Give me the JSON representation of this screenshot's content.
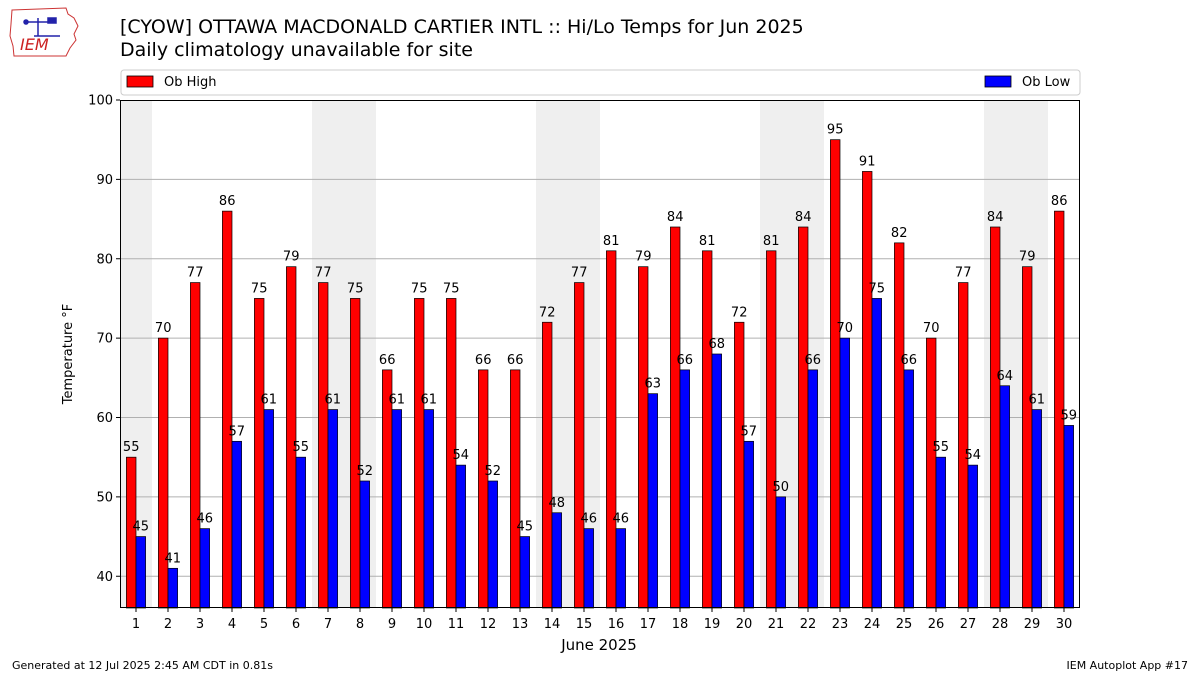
{
  "logo_text": "IEM",
  "header": {
    "title": "[CYOW] OTTAWA MACDONALD CARTIER INTL :: Hi/Lo Temps for Jun 2025",
    "subtitle": "Daily climatology unavailable for site"
  },
  "footer": {
    "left": "Generated at 12 Jul 2025 2:45 AM CDT in 0.81s",
    "right": "IEM Autoplot App #17"
  },
  "colors": {
    "high": "#ff0000",
    "low": "#0000ff",
    "weekend": "#efefef"
  },
  "chart_data": {
    "type": "bar",
    "xlabel": "June 2025",
    "ylabel": "Temperature °F",
    "ylim": [
      36,
      100
    ],
    "yticks": [
      40,
      50,
      60,
      70,
      80,
      90,
      100
    ],
    "grid": true,
    "legend_placement": "top",
    "categories": [
      "1",
      "2",
      "3",
      "4",
      "5",
      "6",
      "7",
      "8",
      "9",
      "10",
      "11",
      "12",
      "13",
      "14",
      "15",
      "16",
      "17",
      "18",
      "19",
      "20",
      "21",
      "22",
      "23",
      "24",
      "25",
      "26",
      "27",
      "28",
      "29",
      "30"
    ],
    "shaded_days": [
      1,
      7,
      8,
      14,
      15,
      21,
      22,
      28,
      29
    ],
    "series": [
      {
        "name": "Ob High",
        "color": "#ff0000",
        "values": [
          55,
          70,
          77,
          86,
          75,
          79,
          77,
          75,
          66,
          75,
          75,
          66,
          66,
          72,
          77,
          81,
          79,
          84,
          81,
          72,
          81,
          84,
          95,
          91,
          82,
          70,
          77,
          84,
          79,
          86
        ]
      },
      {
        "name": "Ob Low",
        "color": "#0000ff",
        "values": [
          45,
          41,
          46,
          57,
          61,
          55,
          61,
          52,
          61,
          61,
          54,
          52,
          45,
          48,
          46,
          46,
          63,
          66,
          68,
          57,
          50,
          66,
          70,
          75,
          66,
          55,
          54,
          64,
          61,
          59
        ]
      }
    ]
  }
}
